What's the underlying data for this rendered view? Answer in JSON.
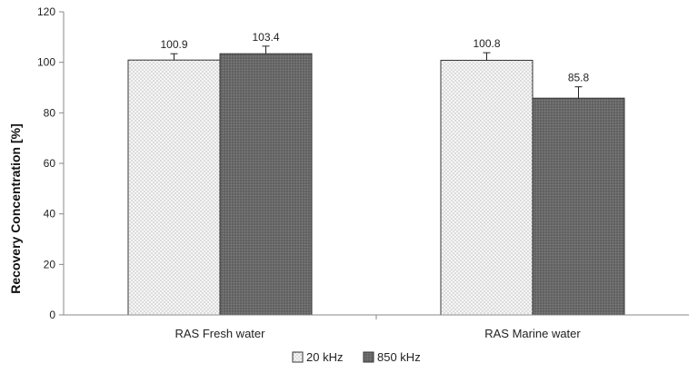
{
  "chart_data": {
    "type": "bar",
    "title": "",
    "xlabel": "",
    "ylabel": "Recovery Concentration [%]",
    "ylim": [
      0,
      120
    ],
    "yticks": [
      0,
      20,
      40,
      60,
      80,
      100,
      120
    ],
    "categories": [
      "RAS Fresh water",
      "RAS Marine water"
    ],
    "series": [
      {
        "name": "20 kHz",
        "values": [
          100.9,
          100.8
        ],
        "errors": [
          2.5,
          3.0
        ],
        "labels": [
          "100.9",
          "100.8"
        ],
        "color": "#f4f4f4",
        "pattern": "dotted"
      },
      {
        "name": "850 kHz",
        "values": [
          103.4,
          85.8
        ],
        "errors": [
          3.0,
          4.5
        ],
        "labels": [
          "103.4",
          "85.8"
        ],
        "color": "#6b6b6b",
        "pattern": "dark-stipple"
      }
    ],
    "grid": false,
    "legend": "bottom-center"
  }
}
